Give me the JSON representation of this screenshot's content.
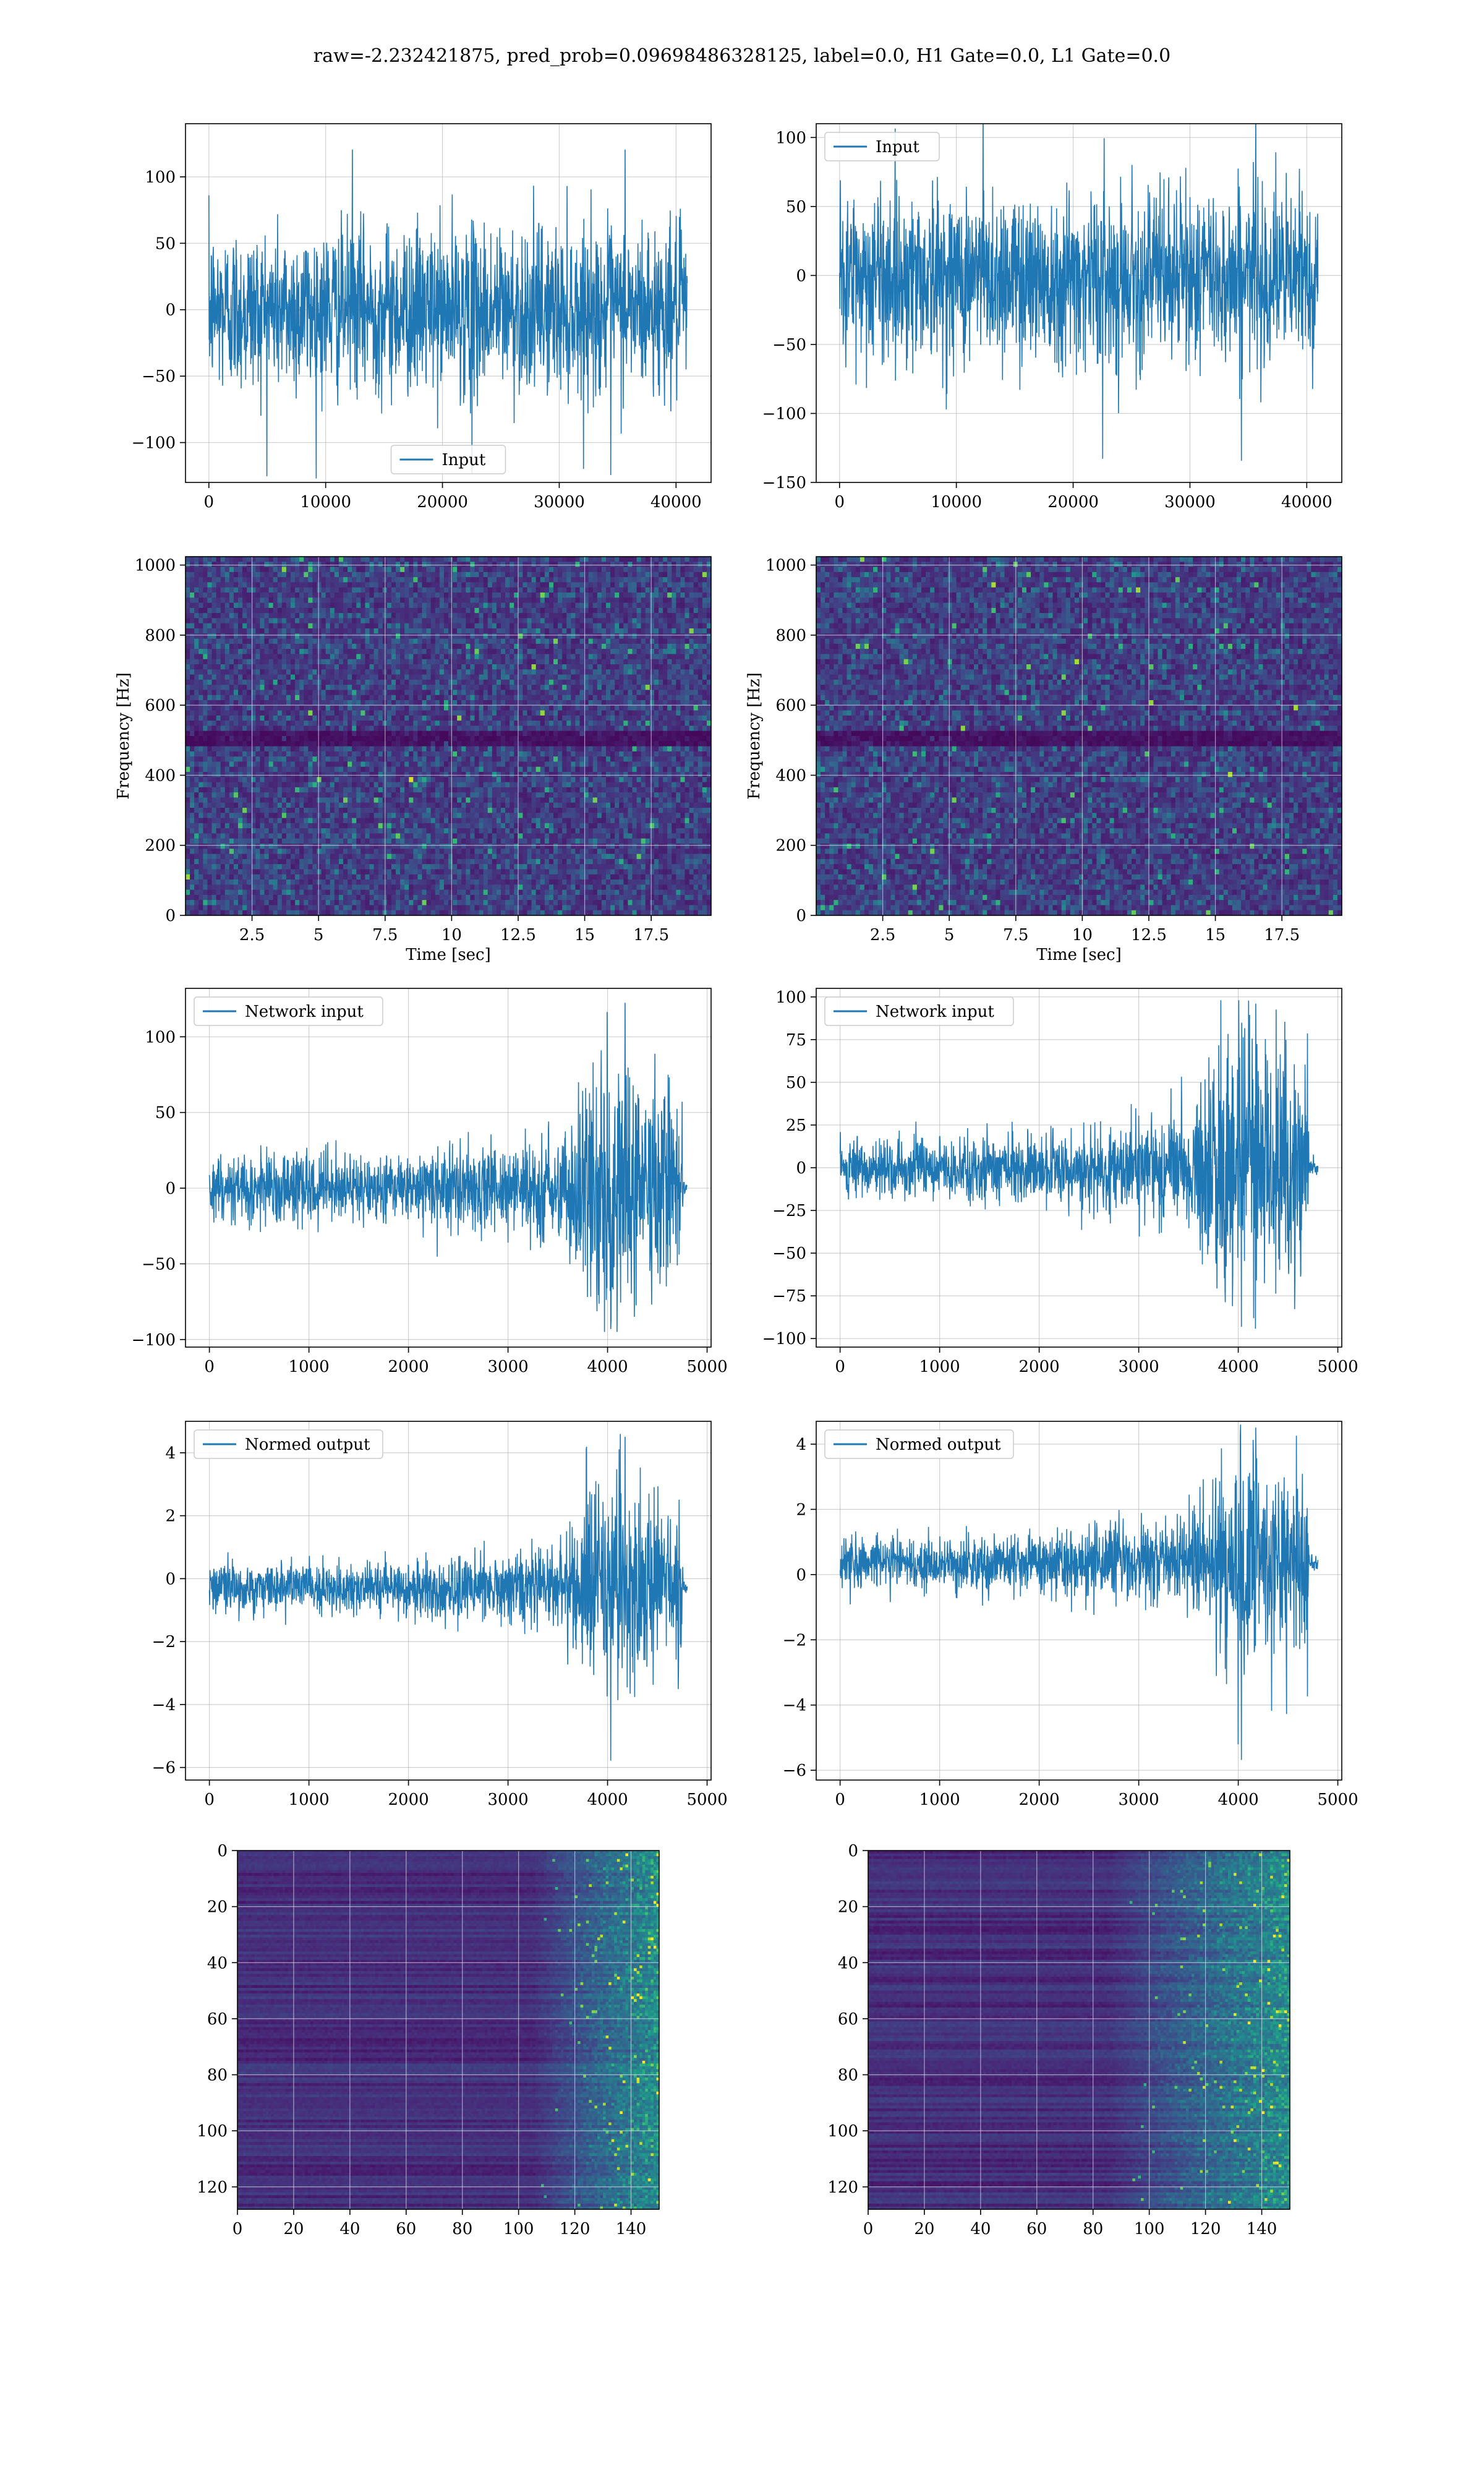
{
  "suptitle": "raw=-2.232421875, pred_prob=0.09698486328125, label=0.0, H1 Gate=0.0, L1 Gate=0.0",
  "colors": {
    "line": "#1f77b4",
    "grid": "#b0b0b0",
    "viridis_dark": "#440154",
    "viridis_mid": "#21918c",
    "viridis_bright": "#fde725"
  },
  "chart_data": [
    {
      "type": "line",
      "panel": "row1-left",
      "series": [
        {
          "name": "Input",
          "x_range": [
            0,
            40960
          ],
          "amplitude_rms": 27,
          "extremes": [
            -127,
            123
          ]
        }
      ],
      "xlim": [
        -2000,
        43000
      ],
      "ylim": [
        -130,
        140
      ],
      "xticks": [
        0,
        10000,
        20000,
        30000,
        40000
      ],
      "yticks": [
        -100,
        -50,
        0,
        50,
        100
      ],
      "legend": "lower-center",
      "grid": true
    },
    {
      "type": "line",
      "panel": "row1-right",
      "series": [
        {
          "name": "Input",
          "x_range": [
            0,
            40960
          ],
          "amplitude_rms": 27,
          "extremes": [
            -137,
            125
          ]
        }
      ],
      "xlim": [
        -2000,
        43000
      ],
      "ylim": [
        -150,
        110
      ],
      "xticks": [
        0,
        10000,
        20000,
        30000,
        40000
      ],
      "yticks": [
        -150,
        -100,
        -50,
        0,
        50,
        100
      ],
      "legend": "upper-left",
      "grid": true
    },
    {
      "type": "heatmap",
      "panel": "row2-left",
      "xlabel": "Time [sec]",
      "ylabel": "Frequency [Hz]",
      "xlim": [
        0,
        19.75
      ],
      "ylim": [
        0,
        1024
      ],
      "xticks": [
        2.5,
        5.0,
        7.5,
        10.0,
        12.5,
        15.0,
        17.5
      ],
      "yticks": [
        0,
        200,
        400,
        600,
        800,
        1000
      ],
      "colormap": "viridis",
      "grid": true,
      "dark_band_hz": [
        480,
        520
      ]
    },
    {
      "type": "heatmap",
      "panel": "row2-right",
      "xlabel": "Time [sec]",
      "ylabel": "Frequency [Hz]",
      "xlim": [
        0,
        19.75
      ],
      "ylim": [
        0,
        1024
      ],
      "xticks": [
        2.5,
        5.0,
        7.5,
        10.0,
        12.5,
        15.0,
        17.5
      ],
      "yticks": [
        0,
        200,
        400,
        600,
        800,
        1000
      ],
      "colormap": "viridis",
      "grid": true,
      "dark_band_hz": [
        480,
        520
      ]
    },
    {
      "type": "line",
      "panel": "row3-left",
      "series": [
        {
          "name": "Network input",
          "x_range": [
            0,
            4800
          ],
          "envelope": [
            [
              0,
              12
            ],
            [
              1000,
              12
            ],
            [
              2000,
              13
            ],
            [
              3000,
              16
            ],
            [
              3500,
              19
            ],
            [
              3700,
              35
            ],
            [
              3900,
              50
            ],
            [
              4000,
              55
            ],
            [
              4200,
              45
            ],
            [
              4400,
              42
            ],
            [
              4600,
              40
            ],
            [
              4750,
              40
            ],
            [
              4760,
              3
            ],
            [
              4800,
              2
            ]
          ],
          "extremes": [
            -95,
            125
          ]
        }
      ],
      "xlim": [
        -240,
        5040
      ],
      "ylim": [
        -105,
        132
      ],
      "xticks": [
        0,
        1000,
        2000,
        3000,
        4000,
        5000
      ],
      "yticks": [
        -100,
        -50,
        0,
        50,
        100
      ],
      "legend": "upper-left",
      "grid": true
    },
    {
      "type": "line",
      "panel": "row3-right",
      "series": [
        {
          "name": "Network input",
          "x_range": [
            0,
            4800
          ],
          "envelope": [
            [
              0,
              10
            ],
            [
              1000,
              10
            ],
            [
              2000,
              11
            ],
            [
              2300,
              13
            ],
            [
              3000,
              15
            ],
            [
              3500,
              18
            ],
            [
              3700,
              32
            ],
            [
              3900,
              45
            ],
            [
              4000,
              48
            ],
            [
              4200,
              42
            ],
            [
              4400,
              38
            ],
            [
              4700,
              35
            ],
            [
              4710,
              3
            ],
            [
              4800,
              2
            ]
          ],
          "extremes": [
            -95,
            98
          ]
        }
      ],
      "xlim": [
        -240,
        5040
      ],
      "ylim": [
        -105,
        105
      ],
      "xticks": [
        0,
        1000,
        2000,
        3000,
        4000,
        5000
      ],
      "yticks": [
        -100,
        -75,
        -50,
        -25,
        0,
        25,
        50,
        75,
        100
      ],
      "legend": "upper-left",
      "grid": true
    },
    {
      "type": "line",
      "panel": "row4-left",
      "series": [
        {
          "name": "Normed output",
          "x_range": [
            0,
            4800
          ],
          "envelope": [
            [
              0,
              0.45
            ],
            [
              1000,
              0.45
            ],
            [
              2000,
              0.5
            ],
            [
              3000,
              0.6
            ],
            [
              3500,
              0.75
            ],
            [
              3700,
              1.3
            ],
            [
              3900,
              1.9
            ],
            [
              4000,
              2.1
            ],
            [
              4200,
              1.8
            ],
            [
              4400,
              1.6
            ],
            [
              4600,
              1.5
            ],
            [
              4750,
              1.5
            ],
            [
              4760,
              0.12
            ],
            [
              4800,
              0.1
            ]
          ],
          "extremes": [
            -5.9,
            4.6
          ],
          "offset": -0.3
        }
      ],
      "xlim": [
        -240,
        5040
      ],
      "ylim": [
        -6.4,
        5.0
      ],
      "xticks": [
        0,
        1000,
        2000,
        3000,
        4000,
        5000
      ],
      "yticks": [
        -6,
        -4,
        -2,
        0,
        2,
        4
      ],
      "legend": "upper-left",
      "grid": true
    },
    {
      "type": "line",
      "panel": "row4-right",
      "series": [
        {
          "name": "Normed output",
          "x_range": [
            0,
            4800
          ],
          "envelope": [
            [
              0,
              0.45
            ],
            [
              1000,
              0.45
            ],
            [
              2000,
              0.5
            ],
            [
              2300,
              0.6
            ],
            [
              3000,
              0.65
            ],
            [
              3500,
              0.8
            ],
            [
              3700,
              1.4
            ],
            [
              3900,
              2.0
            ],
            [
              4000,
              2.1
            ],
            [
              4200,
              1.9
            ],
            [
              4400,
              1.7
            ],
            [
              4700,
              1.6
            ],
            [
              4710,
              0.12
            ],
            [
              4800,
              0.1
            ]
          ],
          "extremes": [
            -5.8,
            4.6
          ],
          "offset": 0.35
        }
      ],
      "xlim": [
        -240,
        5040
      ],
      "ylim": [
        -6.3,
        4.7
      ],
      "xticks": [
        0,
        1000,
        2000,
        3000,
        4000,
        5000
      ],
      "yticks": [
        -6,
        -4,
        -2,
        0,
        2,
        4
      ],
      "legend": "upper-left",
      "grid": true
    },
    {
      "type": "heatmap",
      "panel": "row5-left",
      "xlim": [
        0,
        150
      ],
      "ylim": [
        0,
        128
      ],
      "y_inverted": true,
      "xticks": [
        0,
        20,
        40,
        60,
        80,
        100,
        120,
        140
      ],
      "yticks": [
        0,
        20,
        40,
        60,
        80,
        100,
        120
      ],
      "colormap": "viridis",
      "grid": true,
      "activity_onset_col": 105
    },
    {
      "type": "heatmap",
      "panel": "row5-right",
      "xlim": [
        0,
        150
      ],
      "ylim": [
        0,
        128
      ],
      "y_inverted": true,
      "xticks": [
        0,
        20,
        40,
        60,
        80,
        100,
        120,
        140
      ],
      "yticks": [
        0,
        20,
        40,
        60,
        80,
        100,
        120
      ],
      "colormap": "viridis",
      "grid": true,
      "activity_onset_col": 85
    }
  ]
}
